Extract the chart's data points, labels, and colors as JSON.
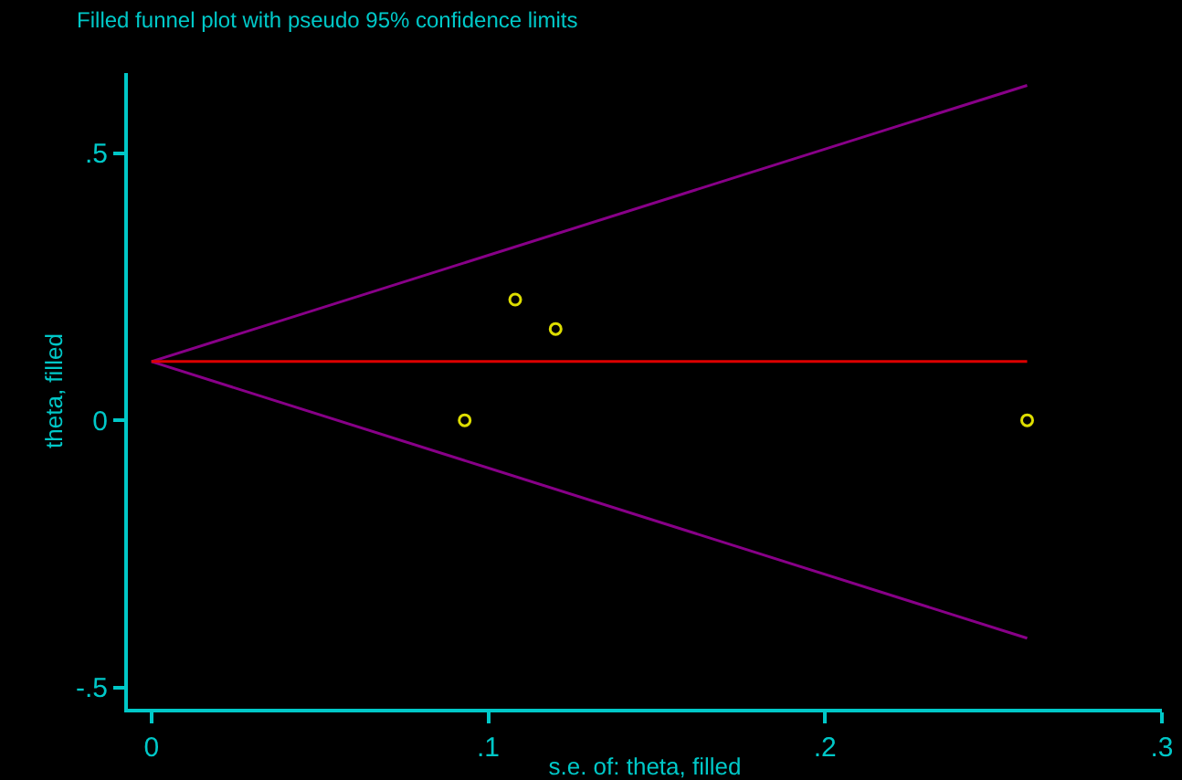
{
  "chart_data": {
    "type": "scatter",
    "title": "Filled funnel plot with pseudo 95% confidence limits",
    "xlabel": "s.e. of: theta, filled",
    "ylabel": "theta, filled",
    "xlim": [
      -0.007,
      0.3
    ],
    "ylim": [
      -0.54,
      0.65
    ],
    "xticks": [
      0,
      {
        "value": 0.1,
        "label": ".1"
      },
      {
        "value": 0.2,
        "label": ".2"
      },
      {
        "value": 0.3,
        "label": ".3"
      }
    ],
    "yticks": [
      {
        "value": -0.5,
        "label": "-.5"
      },
      0,
      {
        "value": 0.5,
        "label": ".5"
      }
    ],
    "grid": false,
    "series": [
      {
        "type": "line",
        "color": "#880088",
        "x": [
          0,
          0.26
        ],
        "values": [
          0.11,
          0.627
        ]
      },
      {
        "type": "line",
        "color": "#880088",
        "x": [
          0,
          0.26
        ],
        "values": [
          0.11,
          -0.408
        ]
      },
      {
        "type": "line",
        "color": "#dd0000",
        "x": [
          0,
          0.26
        ],
        "values": [
          0.11,
          0.11
        ]
      },
      {
        "type": "scatter",
        "color": "#dddd00",
        "marker": "circle",
        "x": [
          0.093,
          0.108,
          0.12,
          0.26
        ],
        "values": [
          0,
          0.226,
          0.171,
          0
        ]
      }
    ]
  }
}
